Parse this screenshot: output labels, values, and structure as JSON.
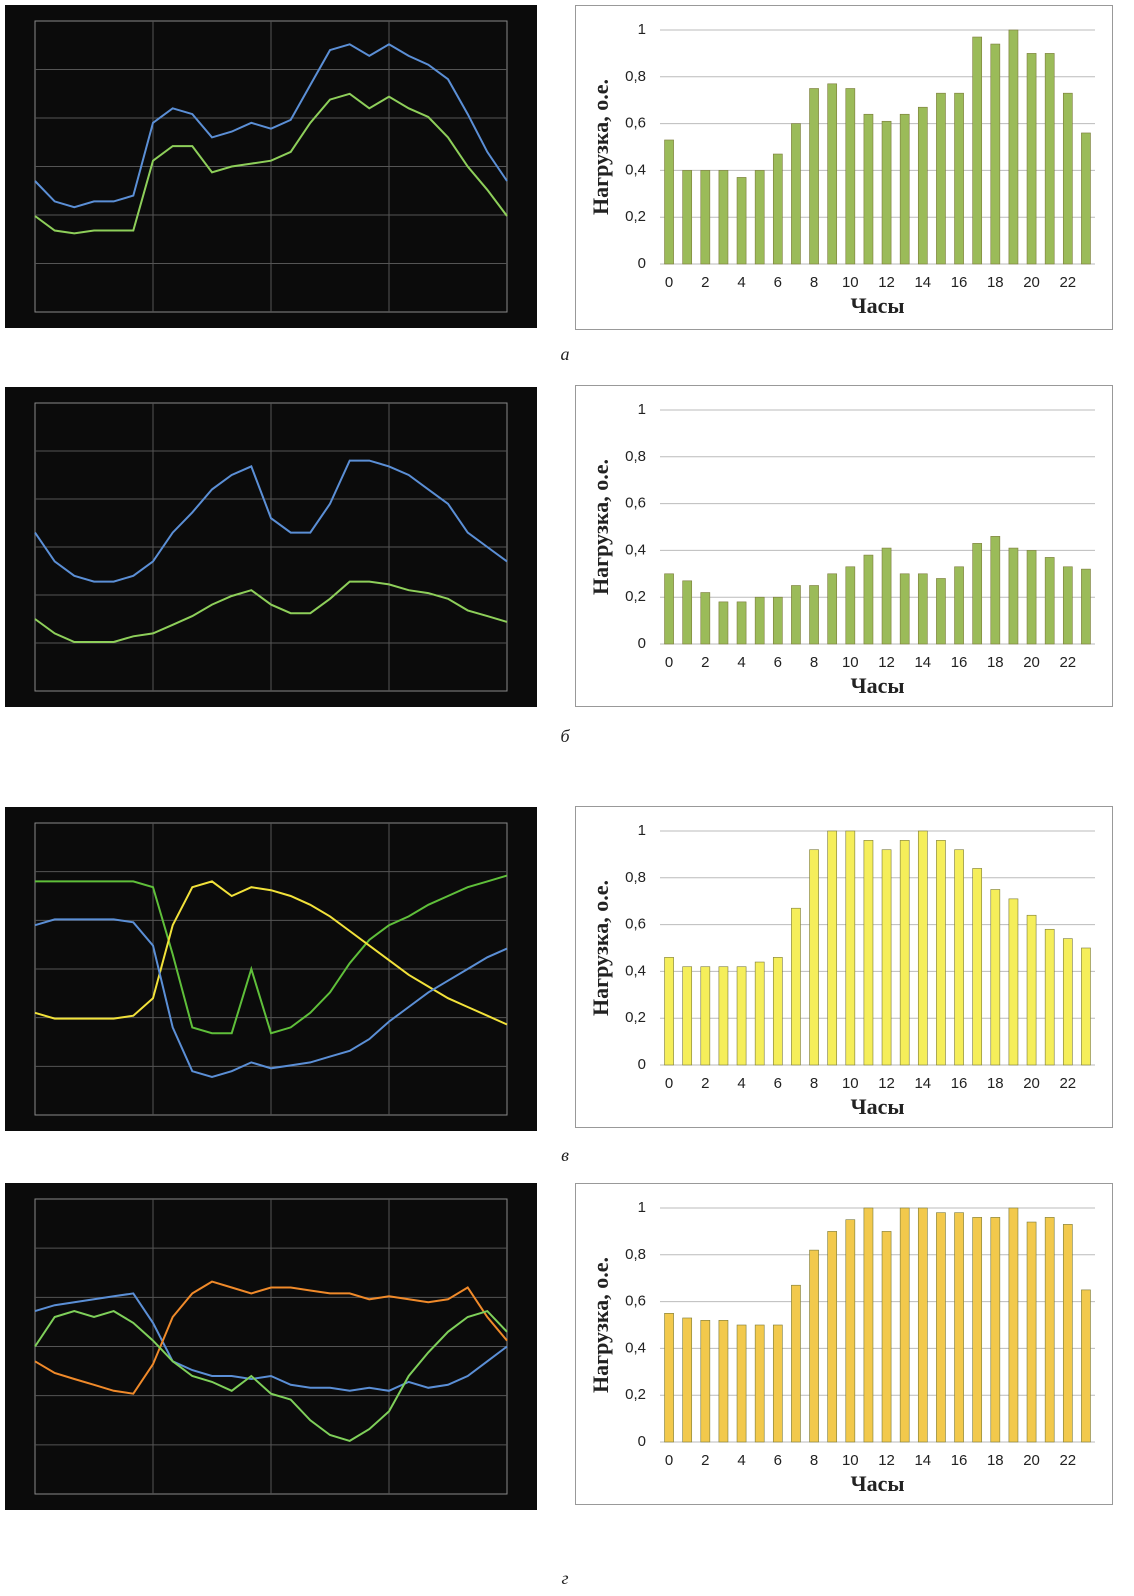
{
  "chart_data": [
    {
      "type": "line",
      "ylim": [
        0,
        1
      ],
      "grid": true,
      "series": [
        {
          "color": "#5b8fd6",
          "values": [
            0.45,
            0.38,
            0.36,
            0.38,
            0.38,
            0.4,
            0.65,
            0.7,
            0.68,
            0.6,
            0.62,
            0.65,
            0.63,
            0.66,
            0.78,
            0.9,
            0.92,
            0.88,
            0.92,
            0.88,
            0.85,
            0.8,
            0.68,
            0.55,
            0.45
          ]
        },
        {
          "color": "#8ecf5a",
          "values": [
            0.33,
            0.28,
            0.27,
            0.28,
            0.28,
            0.28,
            0.52,
            0.57,
            0.57,
            0.48,
            0.5,
            0.51,
            0.52,
            0.55,
            0.65,
            0.73,
            0.75,
            0.7,
            0.74,
            0.7,
            0.67,
            0.6,
            0.5,
            0.42,
            0.33
          ]
        }
      ]
    },
    {
      "type": "bar",
      "caption": "а",
      "xlabel": "Часы",
      "ylabel": "Нагрузка, о.е.",
      "color": "#9bbb59",
      "grid": true,
      "categories": [
        "0",
        null,
        "2",
        null,
        "4",
        null,
        "6",
        null,
        "8",
        null,
        "10",
        null,
        "12",
        null,
        "14",
        null,
        "16",
        null,
        "18",
        null,
        "20",
        null,
        "22",
        null
      ],
      "values": [
        0.53,
        0.4,
        0.4,
        0.4,
        0.37,
        0.4,
        0.47,
        0.6,
        0.75,
        0.77,
        0.75,
        0.64,
        0.61,
        0.64,
        0.67,
        0.73,
        0.73,
        0.97,
        0.94,
        1.0,
        0.9,
        0.9,
        0.73,
        0.56
      ],
      "ylim": [
        0,
        1
      ],
      "yticks": [
        0,
        {
          "value": 0.2,
          "label": "0,2"
        },
        {
          "value": 0.4,
          "label": "0,4"
        },
        {
          "value": 0.6,
          "label": "0,6"
        },
        {
          "value": 0.8,
          "label": "0,8"
        },
        1
      ]
    },
    {
      "type": "line",
      "ylim": [
        0,
        1
      ],
      "grid": true,
      "series": [
        {
          "color": "#5b8fd6",
          "values": [
            0.55,
            0.45,
            0.4,
            0.38,
            0.38,
            0.4,
            0.45,
            0.55,
            0.62,
            0.7,
            0.75,
            0.78,
            0.6,
            0.55,
            0.55,
            0.65,
            0.8,
            0.8,
            0.78,
            0.75,
            0.7,
            0.65,
            0.55,
            0.5,
            0.45
          ]
        },
        {
          "color": "#8ecf5a",
          "values": [
            0.25,
            0.2,
            0.17,
            0.17,
            0.17,
            0.19,
            0.2,
            0.23,
            0.26,
            0.3,
            0.33,
            0.35,
            0.3,
            0.27,
            0.27,
            0.32,
            0.38,
            0.38,
            0.37,
            0.35,
            0.34,
            0.32,
            0.28,
            0.26,
            0.24
          ]
        }
      ]
    },
    {
      "type": "bar",
      "caption": "б",
      "xlabel": "Часы",
      "ylabel": "Нагрузка, о.е.",
      "color": "#9bbb59",
      "grid": true,
      "categories": [
        "0",
        null,
        "2",
        null,
        "4",
        null,
        "6",
        null,
        "8",
        null,
        "10",
        null,
        "12",
        null,
        "14",
        null,
        "16",
        null,
        "18",
        null,
        "20",
        null,
        "22",
        null
      ],
      "values": [
        0.3,
        0.27,
        0.22,
        0.18,
        0.18,
        0.2,
        0.2,
        0.25,
        0.25,
        0.3,
        0.33,
        0.38,
        0.41,
        0.3,
        0.3,
        0.28,
        0.33,
        0.43,
        0.46,
        0.41,
        0.4,
        0.37,
        0.33,
        0.32
      ],
      "ylim": [
        0,
        1
      ],
      "yticks": [
        0,
        {
          "value": 0.2,
          "label": "0,2"
        },
        {
          "value": 0.4,
          "label": "0,4"
        },
        {
          "value": 0.6,
          "label": "0,6"
        },
        {
          "value": 0.8,
          "label": "0,8"
        },
        1
      ]
    },
    {
      "type": "line",
      "ylim": [
        0,
        1
      ],
      "grid": true,
      "series": [
        {
          "color": "#5fbf3a",
          "values": [
            0.8,
            0.8,
            0.8,
            0.8,
            0.8,
            0.8,
            0.78,
            0.55,
            0.3,
            0.28,
            0.28,
            0.5,
            0.28,
            0.3,
            0.35,
            0.42,
            0.52,
            0.6,
            0.65,
            0.68,
            0.72,
            0.75,
            0.78,
            0.8,
            0.82
          ]
        },
        {
          "color": "#f2e23a",
          "values": [
            0.35,
            0.33,
            0.33,
            0.33,
            0.33,
            0.34,
            0.4,
            0.65,
            0.78,
            0.8,
            0.75,
            0.78,
            0.77,
            0.75,
            0.72,
            0.68,
            0.63,
            0.58,
            0.53,
            0.48,
            0.44,
            0.4,
            0.37,
            0.34,
            0.31
          ]
        },
        {
          "color": "#5b8fd6",
          "values": [
            0.65,
            0.67,
            0.67,
            0.67,
            0.67,
            0.66,
            0.58,
            0.3,
            0.15,
            0.13,
            0.15,
            0.18,
            0.16,
            0.17,
            0.18,
            0.2,
            0.22,
            0.26,
            0.32,
            0.37,
            0.42,
            0.46,
            0.5,
            0.54,
            0.57
          ]
        }
      ]
    },
    {
      "type": "bar",
      "caption": "в",
      "xlabel": "Часы",
      "ylabel": "Нагрузка, о.е.",
      "color": "#f5ee5a",
      "grid": true,
      "categories": [
        "0",
        null,
        "2",
        null,
        "4",
        null,
        "6",
        null,
        "8",
        null,
        "10",
        null,
        "12",
        null,
        "14",
        null,
        "16",
        null,
        "18",
        null,
        "20",
        null,
        "22",
        null
      ],
      "values": [
        0.46,
        0.42,
        0.42,
        0.42,
        0.42,
        0.44,
        0.46,
        0.67,
        0.92,
        1.0,
        1.0,
        0.96,
        0.92,
        0.96,
        1.0,
        0.96,
        0.92,
        0.84,
        0.75,
        0.71,
        0.64,
        0.58,
        0.54,
        0.5
      ],
      "ylim": [
        0,
        1
      ],
      "yticks": [
        0,
        {
          "value": 0.2,
          "label": "0,2"
        },
        {
          "value": 0.4,
          "label": "0,4"
        },
        {
          "value": 0.6,
          "label": "0,6"
        },
        {
          "value": 0.8,
          "label": "0,8"
        },
        1
      ]
    },
    {
      "type": "line",
      "ylim": [
        0,
        1
      ],
      "grid": true,
      "series": [
        {
          "color": "#5b8fd6",
          "values": [
            0.62,
            0.64,
            0.65,
            0.66,
            0.67,
            0.68,
            0.58,
            0.45,
            0.42,
            0.4,
            0.4,
            0.39,
            0.4,
            0.37,
            0.36,
            0.36,
            0.35,
            0.36,
            0.35,
            0.38,
            0.36,
            0.37,
            0.4,
            0.45,
            0.5
          ]
        },
        {
          "color": "#f08a2a",
          "values": [
            0.45,
            0.41,
            0.39,
            0.37,
            0.35,
            0.34,
            0.44,
            0.6,
            0.68,
            0.72,
            0.7,
            0.68,
            0.7,
            0.7,
            0.69,
            0.68,
            0.68,
            0.66,
            0.67,
            0.66,
            0.65,
            0.66,
            0.7,
            0.6,
            0.52
          ]
        },
        {
          "color": "#7fd05a",
          "values": [
            0.5,
            0.6,
            0.62,
            0.6,
            0.62,
            0.58,
            0.52,
            0.45,
            0.4,
            0.38,
            0.35,
            0.4,
            0.34,
            0.32,
            0.25,
            0.2,
            0.18,
            0.22,
            0.28,
            0.4,
            0.48,
            0.55,
            0.6,
            0.62,
            0.55
          ]
        }
      ]
    },
    {
      "type": "bar",
      "caption": "г",
      "xlabel": "Часы",
      "ylabel": "Нагрузка, о.е.",
      "color": "#f2c94c",
      "grid": true,
      "categories": [
        "0",
        null,
        "2",
        null,
        "4",
        null,
        "6",
        null,
        "8",
        null,
        "10",
        null,
        "12",
        null,
        "14",
        null,
        "16",
        null,
        "18",
        null,
        "20",
        null,
        "22",
        null
      ],
      "values": [
        0.55,
        0.53,
        0.52,
        0.52,
        0.5,
        0.5,
        0.5,
        0.67,
        0.82,
        0.9,
        0.95,
        1.0,
        0.9,
        1.0,
        1.0,
        0.98,
        0.98,
        0.96,
        0.96,
        1.0,
        0.94,
        0.96,
        0.93,
        0.65
      ],
      "ylim": [
        0,
        1
      ],
      "yticks": [
        0,
        {
          "value": 0.2,
          "label": "0,2"
        },
        {
          "value": 0.4,
          "label": "0,4"
        },
        {
          "value": 0.6,
          "label": "0,6"
        },
        {
          "value": 0.8,
          "label": "0,8"
        },
        1
      ]
    }
  ]
}
